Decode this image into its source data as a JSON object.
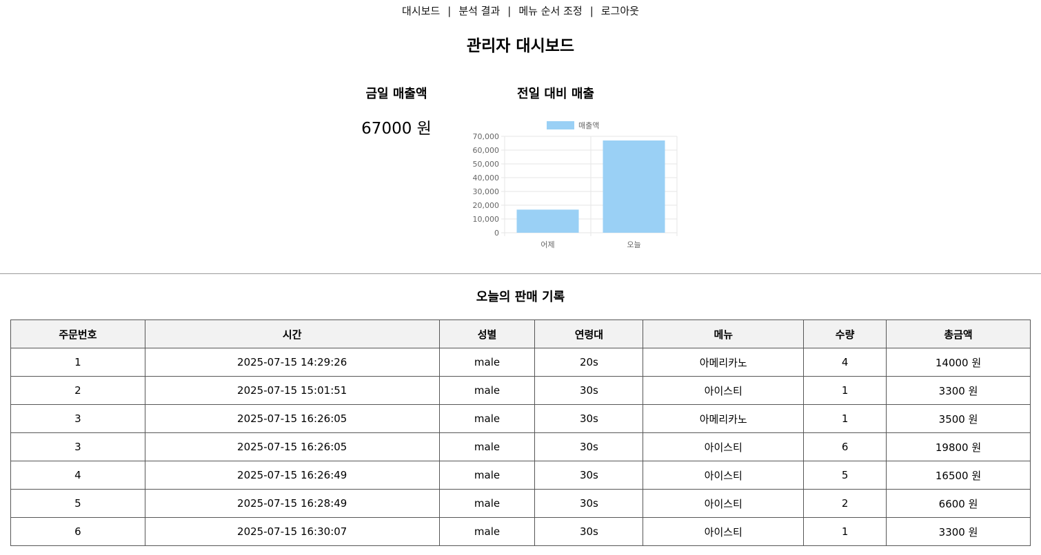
{
  "nav": {
    "items": [
      "대시보드",
      "분석 결과",
      "메뉴 순서 조정",
      "로그아웃"
    ],
    "separator": "|"
  },
  "page_title": "관리자 대시보드",
  "today_sales": {
    "title": "금일 매출액",
    "value": "67000 원"
  },
  "comparison": {
    "title": "전일 대비 매출"
  },
  "chart_data": {
    "type": "bar",
    "categories": [
      "어제",
      "오늘"
    ],
    "series": [
      {
        "name": "매출액",
        "values": [
          16800,
          67000
        ],
        "color": "#9ad0f5"
      }
    ],
    "ylim": [
      0,
      70000
    ],
    "yticks": [
      0,
      10000,
      20000,
      30000,
      40000,
      50000,
      60000,
      70000
    ],
    "ytick_labels": [
      "0",
      "10,000",
      "20,000",
      "30,000",
      "40,000",
      "50,000",
      "60,000",
      "70,000"
    ],
    "grid": true,
    "legend": "top-center"
  },
  "sales_log": {
    "title": "오늘의 판매 기록",
    "columns": [
      "주문번호",
      "시간",
      "성별",
      "연령대",
      "메뉴",
      "수량",
      "총금액"
    ],
    "rows": [
      [
        "1",
        "2025-07-15 14:29:26",
        "male",
        "20s",
        "아메리카노",
        "4",
        "14000 원"
      ],
      [
        "2",
        "2025-07-15 15:01:51",
        "male",
        "30s",
        "아이스티",
        "1",
        "3300 원"
      ],
      [
        "3",
        "2025-07-15 16:26:05",
        "male",
        "30s",
        "아메리카노",
        "1",
        "3500 원"
      ],
      [
        "3",
        "2025-07-15 16:26:05",
        "male",
        "30s",
        "아이스티",
        "6",
        "19800 원"
      ],
      [
        "4",
        "2025-07-15 16:26:49",
        "male",
        "30s",
        "아이스티",
        "5",
        "16500 원"
      ],
      [
        "5",
        "2025-07-15 16:28:49",
        "male",
        "30s",
        "아이스티",
        "2",
        "6600 원"
      ],
      [
        "6",
        "2025-07-15 16:30:07",
        "male",
        "30s",
        "아이스티",
        "1",
        "3300 원"
      ]
    ]
  }
}
